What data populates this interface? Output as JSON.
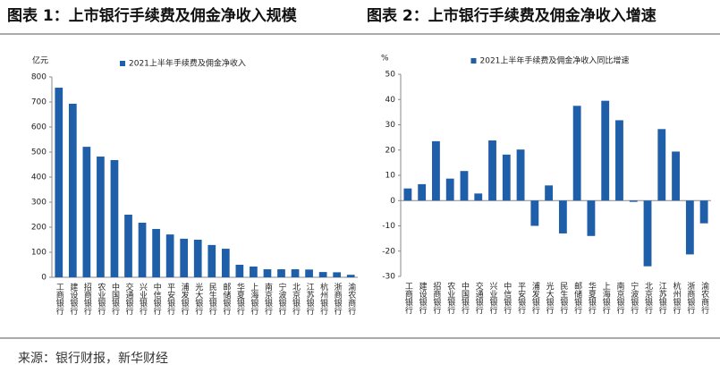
{
  "chart_data": [
    {
      "type": "bar",
      "title": "图表 1：上市银行手续费及佣金净收入规模",
      "y_label": "亿元",
      "categories": [
        "工商银行",
        "建设银行",
        "招商银行",
        "农业银行",
        "中国银行",
        "交通银行",
        "兴业银行",
        "中信银行",
        "平安银行",
        "浦发银行",
        "光大银行",
        "民生银行",
        "邮储银行",
        "华夏银行",
        "上海银行",
        "南京银行",
        "宁波银行",
        "北京银行",
        "江苏银行",
        "杭州银行",
        "浙商银行",
        "渝农商行"
      ],
      "series": [
        {
          "name": "2021上半年手续费及佣金净收入",
          "color": "#1f5ea8",
          "values": [
            757,
            693,
            521,
            482,
            468,
            250,
            218,
            193,
            171,
            154,
            150,
            129,
            114,
            50,
            43,
            32,
            32,
            32,
            31,
            21,
            20,
            10
          ]
        }
      ],
      "ylim": [
        0,
        800
      ],
      "yticks": [
        0,
        100,
        200,
        300,
        400,
        500,
        600,
        700,
        800
      ]
    },
    {
      "type": "bar",
      "title": "图表 2：上市银行手续费及佣金净收入增速",
      "y_label": "%",
      "categories": [
        "工商银行",
        "建设银行",
        "招商银行",
        "农业银行",
        "中国银行",
        "交通银行",
        "兴业银行",
        "中信银行",
        "平安银行",
        "浦发银行",
        "光大银行",
        "民生银行",
        "邮储银行",
        "华夏银行",
        "上海银行",
        "南京银行",
        "宁波银行",
        "北京银行",
        "江苏银行",
        "杭州银行",
        "浙商银行",
        "渝农商行"
      ],
      "series": [
        {
          "name": "2021上半年手续费及佣金净收入同比增速",
          "color": "#1f5ea8",
          "values": [
            4.8,
            6.5,
            23.5,
            8.7,
            11.7,
            2.8,
            23.8,
            18.2,
            20.2,
            -10,
            6,
            -13,
            37.5,
            -14,
            39.5,
            31.8,
            -0.5,
            -26,
            28.3,
            19.4,
            -21.3,
            -9
          ]
        }
      ],
      "ylim": [
        -30,
        50
      ],
      "yticks": [
        -30,
        -20,
        -10,
        0,
        10,
        20,
        30,
        40,
        50
      ]
    }
  ],
  "source": "来源：银行财报，新华财经"
}
